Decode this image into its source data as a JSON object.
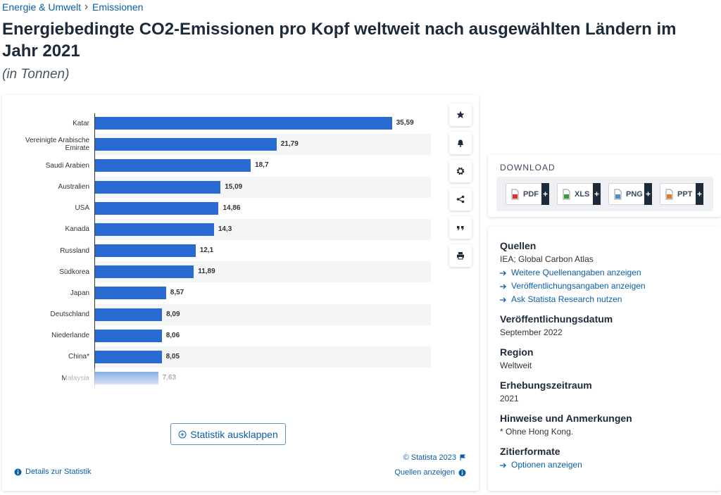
{
  "breadcrumb": [
    "Energie & Umwelt",
    "Emissionen"
  ],
  "header": {
    "title": "Energiebedingte CO2-Emissionen pro Kopf weltweit nach ausgewählten Ländern im Jahr 2021",
    "subtitle": "(in Tonnen)"
  },
  "chart_data": {
    "type": "bar",
    "orientation": "horizontal",
    "categories": [
      "Katar",
      "Vereinigte Arabische Emirate",
      "Saudi Arabien",
      "Australien",
      "USA",
      "Kanada",
      "Russland",
      "Südkorea",
      "Japan",
      "Deutschland",
      "Niederlande",
      "China*",
      "Malaysia"
    ],
    "values": [
      35.59,
      21.79,
      18.7,
      15.09,
      14.86,
      14.3,
      12.1,
      11.89,
      8.57,
      8.09,
      8.06,
      8.05,
      7.63
    ],
    "value_labels": [
      "35,59",
      "21,79",
      "18,7",
      "15,09",
      "14,86",
      "14,3",
      "12,1",
      "11,89",
      "8,57",
      "8,09",
      "8,06",
      "8,05",
      "7,63"
    ],
    "color": "#2a6ad3",
    "xlim": [
      0,
      40
    ],
    "striped_rows": true
  },
  "chart_footer": {
    "expand_button": "Statistik ausklappen",
    "copyright": "© Statista 2023",
    "details_link": "Details zur Statistik",
    "sources_link": "Quellen anzeigen"
  },
  "download": {
    "title": "DOWNLOAD",
    "formats": [
      "PDF",
      "XLS",
      "PNG",
      "PPT"
    ]
  },
  "info": {
    "sources": {
      "heading": "Quellen",
      "text": "IEA; Global Carbon Atlas",
      "links": [
        "Weitere Quellenangaben anzeigen",
        "Veröffentlichungsangaben anzeigen",
        "Ask Statista Research nutzen"
      ]
    },
    "publication_date": {
      "heading": "Veröffentlichungsdatum",
      "text": "September 2022"
    },
    "region": {
      "heading": "Region",
      "text": "Weltweit"
    },
    "survey_period": {
      "heading": "Erhebungszeitraum",
      "text": "2021"
    },
    "notes": {
      "heading": "Hinweise und Anmerkungen",
      "text": "* Ohne Hong Kong."
    },
    "citation": {
      "heading": "Zitierformate",
      "link": "Optionen anzeigen"
    }
  }
}
